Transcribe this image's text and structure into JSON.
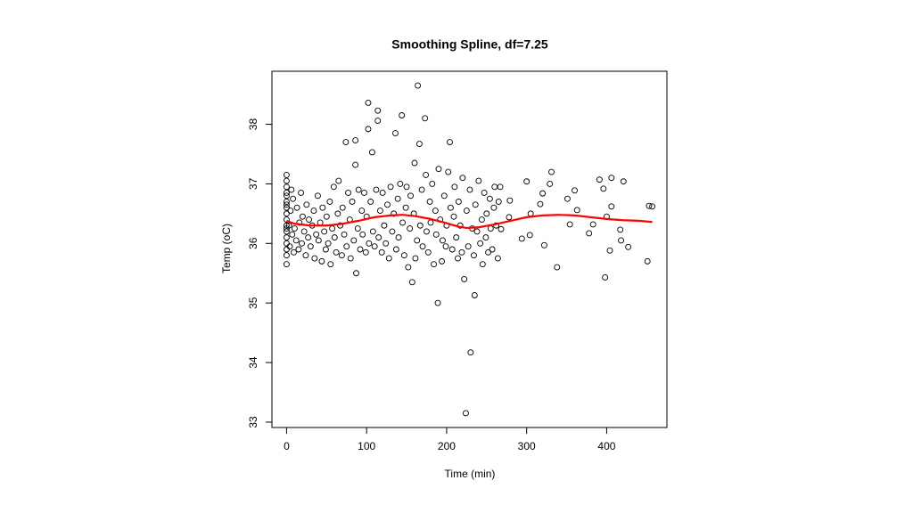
{
  "chart_data": {
    "type": "scatter",
    "title": "Smoothing Spline, df=7.25",
    "x_label": "Time (min)",
    "y_label": "Temp (oC)",
    "xlim": [
      -18.3,
      475.3
    ],
    "ylim": [
      32.91,
      38.89
    ],
    "xticks": [
      0,
      100,
      200,
      300,
      400
    ],
    "yticks": [
      33,
      34,
      35,
      36,
      37,
      38
    ],
    "grid": false,
    "series": [
      {
        "type": "scatter",
        "color": "#000000",
        "x": [
          0,
          0,
          0,
          0,
          0,
          0,
          0,
          0,
          0,
          0,
          0,
          0,
          0,
          0,
          0,
          0,
          0,
          0,
          3,
          4,
          5,
          6,
          7,
          8,
          9,
          10,
          12,
          13,
          15,
          16,
          18,
          19,
          20,
          22,
          24,
          25,
          27,
          28,
          30,
          32,
          34,
          35,
          37,
          39,
          40,
          42,
          44,
          45,
          47,
          49,
          50,
          52,
          54,
          55,
          57,
          59,
          60,
          62,
          64,
          65,
          67,
          69,
          70,
          72,
          74,
          75,
          77,
          79,
          80,
          82,
          84,
          86,
          86,
          87,
          89,
          90,
          92,
          94,
          95,
          97,
          99,
          100,
          102,
          102,
          103,
          105,
          107,
          108,
          110,
          112,
          114,
          114,
          115,
          117,
          119,
          120,
          122,
          124,
          126,
          128,
          130,
          132,
          134,
          136,
          137,
          139,
          140,
          142,
          144,
          145,
          147,
          149,
          150,
          152,
          154,
          155,
          157,
          159,
          160,
          161,
          163,
          164,
          166,
          167,
          169,
          170,
          173,
          174,
          175,
          177,
          179,
          180,
          182,
          184,
          186,
          187,
          189,
          190,
          192,
          194,
          195,
          197,
          199,
          200,
          202,
          204,
          205,
          207,
          209,
          210,
          212,
          214,
          215,
          217,
          219,
          220,
          222,
          224,
          225,
          227,
          229,
          230,
          232,
          234,
          235,
          236,
          238,
          240,
          242,
          244,
          245,
          247,
          249,
          250,
          252,
          254,
          255,
          257,
          259,
          260,
          262,
          264,
          265,
          267,
          268,
          278,
          279,
          294,
          300,
          304,
          305,
          317,
          320,
          322,
          329,
          331,
          338,
          351,
          354,
          360,
          363,
          378,
          383,
          391,
          396,
          398,
          400,
          404,
          406,
          406,
          417,
          418,
          421,
          427,
          451,
          453,
          457
        ],
        "values": [
          37.15,
          37.05,
          36.95,
          36.85,
          36.8,
          36.7,
          36.65,
          36.6,
          36.5,
          36.4,
          36.3,
          36.25,
          36.2,
          36.1,
          36.0,
          35.9,
          35.8,
          35.65,
          36.3,
          35.95,
          36.55,
          36.9,
          36.15,
          36.75,
          35.85,
          36.25,
          36.05,
          36.6,
          35.9,
          36.35,
          36.85,
          36.0,
          36.45,
          36.2,
          35.8,
          36.65,
          36.1,
          36.4,
          35.95,
          36.3,
          36.55,
          35.75,
          36.15,
          36.8,
          36.05,
          36.35,
          35.7,
          36.6,
          36.2,
          35.9,
          36.45,
          36.0,
          36.7,
          35.65,
          36.25,
          36.95,
          36.1,
          35.85,
          36.5,
          37.05,
          36.3,
          35.8,
          36.6,
          36.15,
          37.7,
          35.95,
          36.85,
          36.4,
          35.75,
          36.7,
          36.05,
          37.73,
          37.32,
          35.5,
          36.25,
          36.9,
          35.9,
          36.55,
          36.15,
          36.85,
          35.85,
          36.45,
          38.36,
          37.92,
          36.0,
          36.7,
          37.53,
          36.2,
          35.95,
          36.9,
          38.23,
          38.06,
          36.1,
          36.55,
          35.85,
          36.85,
          36.3,
          36.0,
          36.65,
          35.75,
          36.95,
          36.2,
          36.5,
          37.85,
          35.9,
          36.75,
          36.1,
          37.0,
          38.15,
          36.35,
          35.8,
          36.6,
          36.95,
          35.6,
          36.25,
          36.8,
          35.35,
          36.5,
          37.35,
          35.75,
          36.05,
          38.65,
          37.67,
          36.3,
          36.9,
          35.95,
          38.1,
          37.15,
          36.2,
          35.85,
          36.7,
          36.35,
          37.0,
          35.65,
          36.55,
          36.15,
          35.0,
          37.25,
          36.4,
          35.7,
          36.05,
          36.8,
          35.95,
          36.3,
          37.2,
          37.7,
          36.6,
          35.9,
          36.45,
          36.95,
          36.1,
          35.75,
          36.7,
          36.3,
          35.85,
          37.1,
          35.4,
          33.15,
          36.55,
          35.95,
          36.9,
          34.17,
          36.25,
          35.8,
          35.13,
          36.65,
          36.2,
          37.05,
          36.0,
          36.4,
          35.65,
          36.85,
          36.1,
          36.5,
          35.85,
          36.75,
          36.25,
          35.9,
          36.6,
          36.95,
          36.3,
          35.75,
          36.7,
          36.95,
          36.24,
          36.44,
          36.72,
          36.08,
          37.04,
          36.14,
          36.5,
          36.66,
          36.84,
          35.97,
          37.0,
          37.2,
          35.6,
          36.75,
          36.32,
          36.89,
          36.56,
          36.17,
          36.32,
          37.07,
          36.92,
          35.43,
          36.45,
          35.88,
          37.1,
          36.62,
          36.23,
          36.05,
          37.04,
          35.94,
          35.7,
          36.63,
          36.62
        ]
      },
      {
        "type": "line",
        "color": "#ff0000",
        "x": [
          0,
          10,
          30,
          50,
          70,
          90,
          110,
          130,
          145,
          160,
          180,
          200,
          215,
          225,
          240,
          260,
          280,
          300,
          320,
          340,
          360,
          380,
          400,
          420,
          440,
          457
        ],
        "values": [
          36.38,
          36.33,
          36.3,
          36.3,
          36.33,
          36.38,
          36.44,
          36.47,
          36.48,
          36.46,
          36.41,
          36.34,
          36.28,
          36.26,
          36.27,
          36.32,
          36.38,
          36.44,
          36.47,
          36.48,
          36.47,
          36.44,
          36.41,
          36.39,
          36.38,
          36.36
        ]
      }
    ]
  }
}
